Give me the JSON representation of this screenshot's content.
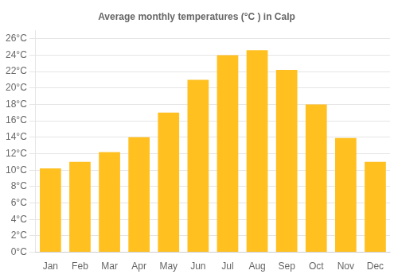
{
  "chart_data": {
    "type": "bar",
    "title": "Average monthly temperatures (°C ) in Calp",
    "categories": [
      "Jan",
      "Feb",
      "Mar",
      "Apr",
      "May",
      "Jun",
      "Jul",
      "Aug",
      "Sep",
      "Oct",
      "Nov",
      "Dec"
    ],
    "values": [
      10.2,
      11.0,
      12.2,
      14.0,
      17.0,
      21.0,
      24.0,
      24.6,
      22.2,
      18.0,
      13.9,
      11.0
    ],
    "color": "#FFC020",
    "ylim": [
      0,
      27
    ],
    "yticks": [
      {
        "value": 0,
        "label": "0°C"
      },
      {
        "value": 2,
        "label": "2°C"
      },
      {
        "value": 4,
        "label": "4°C"
      },
      {
        "value": 6,
        "label": "6°C"
      },
      {
        "value": 8,
        "label": "8°C"
      },
      {
        "value": 10,
        "label": "10°C"
      },
      {
        "value": 12,
        "label": "12°C"
      },
      {
        "value": 14,
        "label": "14°C"
      },
      {
        "value": 16,
        "label": "16°C"
      },
      {
        "value": 18,
        "label": "18°C"
      },
      {
        "value": 20,
        "label": "20°C"
      },
      {
        "value": 22,
        "label": "22°C"
      },
      {
        "value": 24,
        "label": "24°C"
      },
      {
        "value": 26,
        "label": "26°C"
      }
    ],
    "grid": true
  }
}
